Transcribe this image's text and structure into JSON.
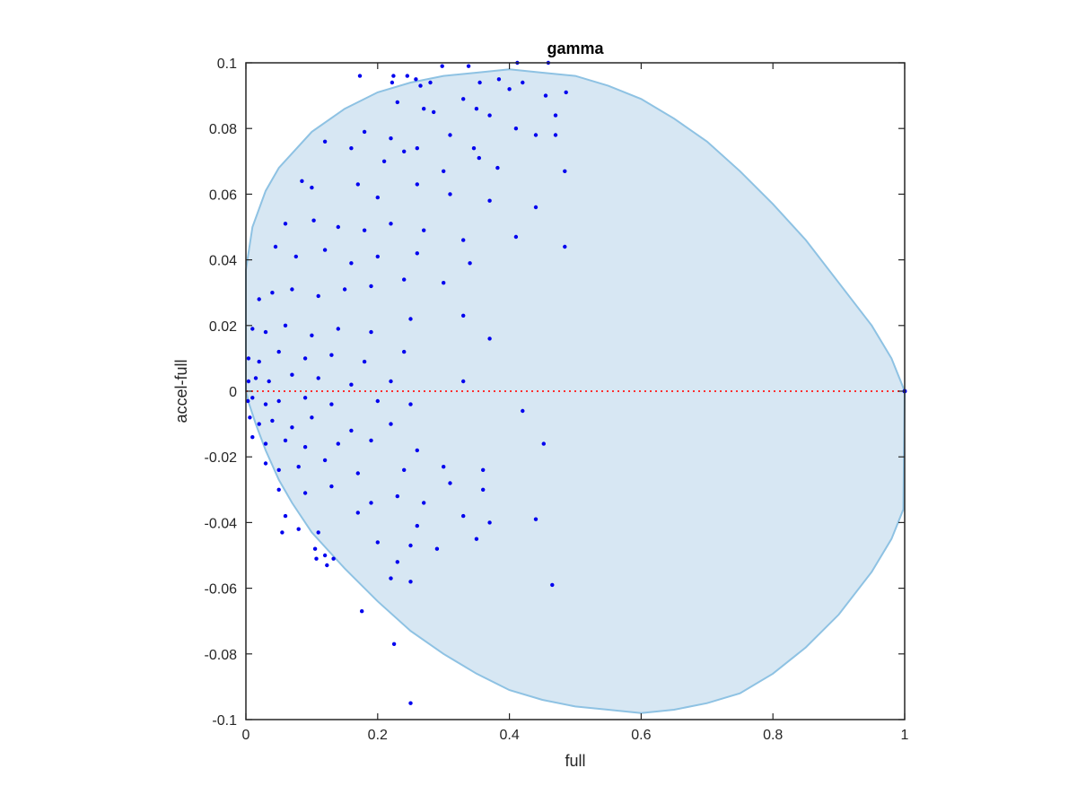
{
  "chart_data": {
    "type": "scatter",
    "title": "gamma",
    "xlabel": "full",
    "ylabel": "accel-full",
    "xlim": [
      0,
      1
    ],
    "ylim": [
      -0.1,
      0.1
    ],
    "xticks": [
      0,
      0.2,
      0.4,
      0.6,
      0.8,
      1
    ],
    "xtick_labels": [
      "0",
      "0.2",
      "0.4",
      "0.6",
      "0.8",
      "1"
    ],
    "yticks": [
      0.1,
      0.08,
      0.06,
      0.04,
      0.02,
      0,
      -0.02,
      -0.04,
      -0.06,
      -0.08,
      -0.1
    ],
    "ytick_labels": [
      "0.1",
      "0.08",
      "0.06",
      "0.04",
      "0.02",
      "0",
      "-0.02",
      "-0.04",
      "-0.06",
      "-0.08",
      "-0.1"
    ],
    "grid": false,
    "box": true,
    "colors": {
      "points": "#0000ee",
      "region_fill": "#d7e7f3",
      "region_edge": "#8ec2e3",
      "zero_line": "#ff3030",
      "axis": "#262626"
    },
    "zero_line": {
      "y": 0,
      "style": "dotted"
    },
    "feasible_region": {
      "boundary": [
        [
          0,
          0.037
        ],
        [
          0.01,
          0.05
        ],
        [
          0.03,
          0.061
        ],
        [
          0.05,
          0.068
        ],
        [
          0.1,
          0.079
        ],
        [
          0.15,
          0.086
        ],
        [
          0.2,
          0.091
        ],
        [
          0.25,
          0.094
        ],
        [
          0.3,
          0.096
        ],
        [
          0.35,
          0.097
        ],
        [
          0.4,
          0.098
        ],
        [
          0.45,
          0.097
        ],
        [
          0.5,
          0.096
        ],
        [
          0.55,
          0.093
        ],
        [
          0.6,
          0.089
        ],
        [
          0.65,
          0.083
        ],
        [
          0.7,
          0.076
        ],
        [
          0.75,
          0.067
        ],
        [
          0.8,
          0.057
        ],
        [
          0.85,
          0.046
        ],
        [
          0.9,
          0.033
        ],
        [
          0.95,
          0.02
        ],
        [
          0.98,
          0.01
        ],
        [
          1,
          0.0
        ],
        [
          0.998,
          -0.036
        ],
        [
          0.98,
          -0.045
        ],
        [
          0.95,
          -0.055
        ],
        [
          0.9,
          -0.068
        ],
        [
          0.85,
          -0.078
        ],
        [
          0.8,
          -0.086
        ],
        [
          0.75,
          -0.092
        ],
        [
          0.7,
          -0.095
        ],
        [
          0.65,
          -0.097
        ],
        [
          0.6,
          -0.098
        ],
        [
          0.55,
          -0.097
        ],
        [
          0.5,
          -0.096
        ],
        [
          0.45,
          -0.094
        ],
        [
          0.4,
          -0.091
        ],
        [
          0.35,
          -0.086
        ],
        [
          0.3,
          -0.08
        ],
        [
          0.25,
          -0.073
        ],
        [
          0.2,
          -0.064
        ],
        [
          0.15,
          -0.054
        ],
        [
          0.1,
          -0.043
        ],
        [
          0.07,
          -0.034
        ],
        [
          0.05,
          -0.027
        ],
        [
          0.03,
          -0.018
        ],
        [
          0.015,
          -0.01
        ],
        [
          0.005,
          -0.004
        ],
        [
          0,
          0.0
        ]
      ]
    },
    "series": [
      {
        "points": [
          [
            0.173,
            0.096
          ],
          [
            0.224,
            0.096
          ],
          [
            0.245,
            0.096
          ],
          [
            0.258,
            0.095
          ],
          [
            0.298,
            0.099
          ],
          [
            0.338,
            0.099
          ],
          [
            0.412,
            0.1
          ],
          [
            0.459,
            0.1
          ],
          [
            0.222,
            0.094
          ],
          [
            0.265,
            0.093
          ],
          [
            0.28,
            0.094
          ],
          [
            0.355,
            0.094
          ],
          [
            0.384,
            0.095
          ],
          [
            0.42,
            0.094
          ],
          [
            0.455,
            0.09
          ],
          [
            0.486,
            0.091
          ],
          [
            0.23,
            0.088
          ],
          [
            0.27,
            0.086
          ],
          [
            0.285,
            0.085
          ],
          [
            0.33,
            0.089
          ],
          [
            0.35,
            0.086
          ],
          [
            0.37,
            0.084
          ],
          [
            0.4,
            0.092
          ],
          [
            0.47,
            0.084
          ],
          [
            0.18,
            0.079
          ],
          [
            0.22,
            0.077
          ],
          [
            0.26,
            0.074
          ],
          [
            0.31,
            0.078
          ],
          [
            0.346,
            0.074
          ],
          [
            0.41,
            0.08
          ],
          [
            0.44,
            0.078
          ],
          [
            0.47,
            0.078
          ],
          [
            0.12,
            0.076
          ],
          [
            0.16,
            0.074
          ],
          [
            0.21,
            0.07
          ],
          [
            0.24,
            0.073
          ],
          [
            0.3,
            0.067
          ],
          [
            0.354,
            0.071
          ],
          [
            0.382,
            0.068
          ],
          [
            0.484,
            0.067
          ],
          [
            0.085,
            0.064
          ],
          [
            0.1,
            0.062
          ],
          [
            0.17,
            0.063
          ],
          [
            0.2,
            0.059
          ],
          [
            0.26,
            0.063
          ],
          [
            0.31,
            0.06
          ],
          [
            0.37,
            0.058
          ],
          [
            0.44,
            0.056
          ],
          [
            0.06,
            0.051
          ],
          [
            0.103,
            0.052
          ],
          [
            0.14,
            0.05
          ],
          [
            0.18,
            0.049
          ],
          [
            0.22,
            0.051
          ],
          [
            0.27,
            0.049
          ],
          [
            0.33,
            0.046
          ],
          [
            0.41,
            0.047
          ],
          [
            0.045,
            0.044
          ],
          [
            0.076,
            0.041
          ],
          [
            0.12,
            0.043
          ],
          [
            0.16,
            0.039
          ],
          [
            0.2,
            0.041
          ],
          [
            0.26,
            0.042
          ],
          [
            0.34,
            0.039
          ],
          [
            0.484,
            0.044
          ],
          [
            0.02,
            0.028
          ],
          [
            0.04,
            0.03
          ],
          [
            0.07,
            0.031
          ],
          [
            0.11,
            0.029
          ],
          [
            0.15,
            0.031
          ],
          [
            0.19,
            0.032
          ],
          [
            0.24,
            0.034
          ],
          [
            0.3,
            0.033
          ],
          [
            0.01,
            0.019
          ],
          [
            0.03,
            0.018
          ],
          [
            0.06,
            0.02
          ],
          [
            0.1,
            0.017
          ],
          [
            0.14,
            0.019
          ],
          [
            0.19,
            0.018
          ],
          [
            0.25,
            0.022
          ],
          [
            0.33,
            0.023
          ],
          [
            0.004,
            0.01
          ],
          [
            0.02,
            0.009
          ],
          [
            0.05,
            0.012
          ],
          [
            0.09,
            0.01
          ],
          [
            0.13,
            0.011
          ],
          [
            0.18,
            0.009
          ],
          [
            0.24,
            0.012
          ],
          [
            0.37,
            0.016
          ],
          [
            0.004,
            0.003
          ],
          [
            0.015,
            0.004
          ],
          [
            0.035,
            0.003
          ],
          [
            0.07,
            0.005
          ],
          [
            0.11,
            0.004
          ],
          [
            0.16,
            0.002
          ],
          [
            0.22,
            0.003
          ],
          [
            0.33,
            0.003
          ],
          [
            0.003,
            -0.003
          ],
          [
            0.01,
            -0.002
          ],
          [
            0.03,
            -0.004
          ],
          [
            0.05,
            -0.003
          ],
          [
            0.09,
            -0.002
          ],
          [
            0.13,
            -0.004
          ],
          [
            0.2,
            -0.003
          ],
          [
            0.25,
            -0.004
          ],
          [
            0.006,
            -0.008
          ],
          [
            0.02,
            -0.01
          ],
          [
            0.04,
            -0.009
          ],
          [
            0.07,
            -0.011
          ],
          [
            0.1,
            -0.008
          ],
          [
            0.16,
            -0.012
          ],
          [
            0.22,
            -0.01
          ],
          [
            0.42,
            -0.006
          ],
          [
            0.01,
            -0.014
          ],
          [
            0.03,
            -0.016
          ],
          [
            0.06,
            -0.015
          ],
          [
            0.09,
            -0.017
          ],
          [
            0.14,
            -0.016
          ],
          [
            0.19,
            -0.015
          ],
          [
            0.26,
            -0.018
          ],
          [
            0.452,
            -0.016
          ],
          [
            0.03,
            -0.022
          ],
          [
            0.05,
            -0.024
          ],
          [
            0.08,
            -0.023
          ],
          [
            0.12,
            -0.021
          ],
          [
            0.17,
            -0.025
          ],
          [
            0.24,
            -0.024
          ],
          [
            0.3,
            -0.023
          ],
          [
            0.36,
            -0.024
          ],
          [
            0.05,
            -0.03
          ],
          [
            0.09,
            -0.031
          ],
          [
            0.13,
            -0.029
          ],
          [
            0.19,
            -0.034
          ],
          [
            0.23,
            -0.032
          ],
          [
            0.31,
            -0.028
          ],
          [
            0.36,
            -0.03
          ],
          [
            0.27,
            -0.034
          ],
          [
            0.06,
            -0.038
          ],
          [
            0.08,
            -0.042
          ],
          [
            0.11,
            -0.043
          ],
          [
            0.17,
            -0.037
          ],
          [
            0.26,
            -0.041
          ],
          [
            0.33,
            -0.038
          ],
          [
            0.37,
            -0.04
          ],
          [
            0.44,
            -0.039
          ],
          [
            0.055,
            -0.043
          ],
          [
            0.105,
            -0.048
          ],
          [
            0.2,
            -0.046
          ],
          [
            0.25,
            -0.047
          ],
          [
            0.29,
            -0.048
          ],
          [
            0.12,
            -0.05
          ],
          [
            0.23,
            -0.052
          ],
          [
            0.35,
            -0.045
          ],
          [
            0.107,
            -0.051
          ],
          [
            0.123,
            -0.053
          ],
          [
            0.133,
            -0.051
          ],
          [
            0.22,
            -0.057
          ],
          [
            0.25,
            -0.058
          ],
          [
            0.465,
            -0.059
          ],
          [
            0.176,
            -0.067
          ],
          [
            0.225,
            -0.077
          ],
          [
            0.25,
            -0.095
          ]
        ]
      }
    ]
  }
}
